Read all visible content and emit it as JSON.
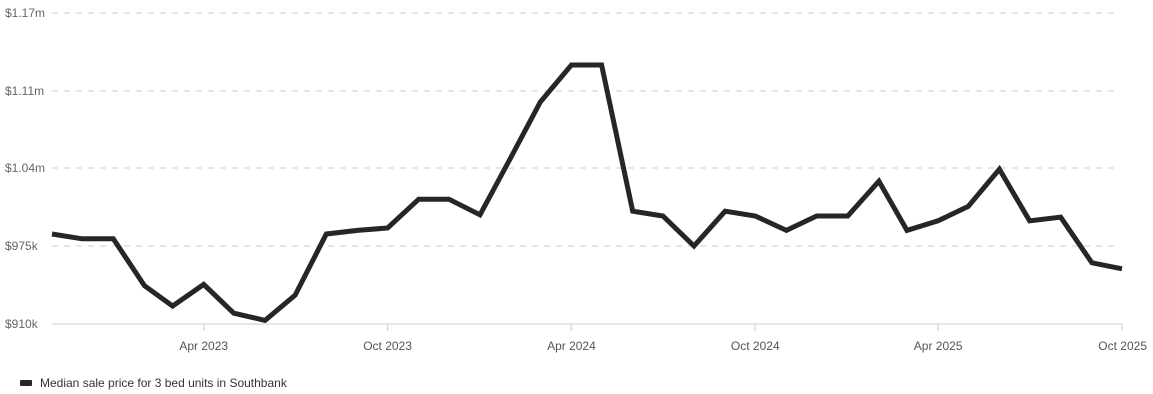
{
  "chart_data": {
    "type": "line",
    "title": "",
    "xlabel": "",
    "ylabel": "",
    "y_tick_labels": [
      "$1.17m",
      "$1.11m",
      "$1.04m",
      "$975k",
      "$910k"
    ],
    "y_tick_values": [
      1170000,
      1110000,
      1040000,
      975000,
      910000
    ],
    "x_tick_labels": [
      "Apr 2023",
      "Oct 2023",
      "Apr 2024",
      "Oct 2024",
      "Apr 2025",
      "Oct 2025"
    ],
    "x_tick_dates": [
      "2023-04-01",
      "2023-10-01",
      "2024-04-01",
      "2024-10-01",
      "2025-04-01",
      "2025-10-01"
    ],
    "ylim": [
      910000,
      1170000
    ],
    "xlim": [
      "2022-11-01",
      "2025-10-01"
    ],
    "grid": true,
    "legend_position": "bottom-left",
    "series": [
      {
        "name": "Median sale price for 3 bed units in Southbank",
        "color": "#262626",
        "x": [
          "2022-11-01",
          "2022-12-01",
          "2023-01-01",
          "2023-02-01",
          "2023-03-01",
          "2023-04-01",
          "2023-05-01",
          "2023-06-01",
          "2023-07-01",
          "2023-08-01",
          "2023-09-01",
          "2023-10-01",
          "2023-11-01",
          "2023-12-01",
          "2024-01-01",
          "2024-02-01",
          "2024-03-01",
          "2024-04-01",
          "2024-05-01",
          "2024-06-01",
          "2024-07-01",
          "2024-08-01",
          "2024-09-01",
          "2024-10-01",
          "2024-11-01",
          "2024-12-01",
          "2025-01-01",
          "2025-02-01",
          "2025-03-01",
          "2025-04-01",
          "2025-05-01",
          "2025-06-01",
          "2025-07-01",
          "2025-08-01",
          "2025-09-01",
          "2025-10-01"
        ],
        "values": [
          985000,
          981000,
          981000,
          942000,
          925000,
          943000,
          919000,
          913000,
          934000,
          985000,
          988000,
          990000,
          1014000,
          1014000,
          1001000,
          1050000,
          1100000,
          1130000,
          1130000,
          1004000,
          1000000,
          975000,
          1004000,
          1000000,
          988000,
          1000000,
          1000000,
          1029000,
          988000,
          996000,
          1008000,
          1039000,
          996000,
          999000,
          961000,
          956000
        ]
      }
    ]
  }
}
